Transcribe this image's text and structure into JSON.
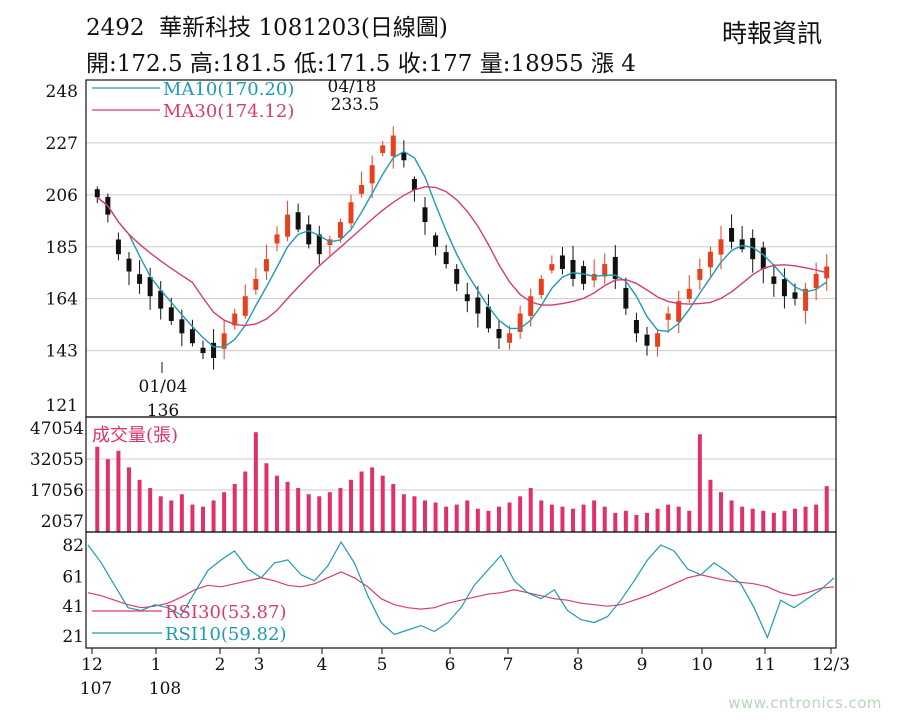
{
  "header": {
    "code": "2492",
    "name": "華新科技",
    "date": "1081203",
    "chart_type": "(日線圖)",
    "open_label": "開:",
    "open": "172.5",
    "high_label": "高:",
    "high": "181.5",
    "low_label": "低:",
    "low": "171.5",
    "close_label": "收:",
    "close": "177",
    "volume_label": "量:",
    "volume": "18955",
    "change_label": "漲",
    "change": "4"
  },
  "source": "時報資訊",
  "watermark": "www.cntronics.com",
  "colors": {
    "ma10": "#1e9bb4",
    "ma30": "#d83c6e",
    "up": "#e8401c",
    "down": "#111111",
    "volume": "#e0306e",
    "grid": "#cccccc"
  },
  "chart_data": [
    {
      "type": "candlestick",
      "title": "2492 華新科技 1081203(日線圖)",
      "ylim": [
        121,
        248
      ],
      "y_ticks": [
        "248",
        "227",
        "206",
        "185",
        "164",
        "143",
        "121"
      ],
      "legend": [
        {
          "name": "MA10",
          "value": "(170.20)",
          "color": "#1e9bb4"
        },
        {
          "name": "MA30",
          "value": "(174.12)",
          "color": "#d83c6e"
        }
      ],
      "annotations": [
        {
          "date": "04/18",
          "value": "233.5",
          "kind": "high"
        },
        {
          "date": "01/04",
          "value": "136",
          "kind": "low"
        }
      ],
      "close_series_approx": [
        205,
        198,
        182,
        175,
        170,
        165,
        160,
        155,
        150,
        146,
        142,
        140,
        150,
        158,
        165,
        172,
        180,
        190,
        198,
        192,
        186,
        182,
        188,
        195,
        203,
        210,
        218,
        226,
        230,
        220,
        208,
        195,
        185,
        178,
        170,
        163,
        158,
        152,
        148,
        150,
        158,
        165,
        172,
        178,
        176,
        172,
        170,
        174,
        178,
        172,
        160,
        150,
        145,
        150,
        158,
        163,
        168,
        176,
        183,
        188,
        187,
        184,
        180,
        176,
        170,
        165,
        164,
        168,
        174,
        177
      ]
    },
    {
      "type": "bar",
      "title": "成交量(張)",
      "ylim": [
        2057,
        47054
      ],
      "y_ticks": [
        "47054",
        "32055",
        "17056",
        "2057"
      ],
      "values_approx": [
        38000,
        32000,
        36000,
        28000,
        22000,
        18000,
        14000,
        12000,
        15000,
        10000,
        9000,
        12000,
        16000,
        20000,
        26000,
        45000,
        30000,
        24000,
        21000,
        18000,
        15000,
        14000,
        16000,
        18000,
        22000,
        26000,
        28000,
        24000,
        20000,
        15000,
        14000,
        12000,
        11000,
        9000,
        10000,
        12000,
        8000,
        7000,
        9000,
        11000,
        14000,
        18000,
        12000,
        10000,
        9000,
        8000,
        10000,
        12000,
        9000,
        6000,
        7000,
        5000,
        6000,
        8000,
        10000,
        9000,
        7000,
        44000,
        22000,
        16000,
        12000,
        9000,
        8000,
        7000,
        6000,
        7000,
        8000,
        9000,
        10000,
        18955
      ]
    },
    {
      "type": "line",
      "ylim": [
        10,
        88
      ],
      "y_ticks": [
        "82",
        "61",
        "41",
        "21"
      ],
      "x_tick_labels": [
        "12",
        "1",
        "2",
        "3",
        "4",
        "5",
        "6",
        "7",
        "8",
        "9",
        "10",
        "11",
        "12/3"
      ],
      "x_year_labels": [
        "107",
        "108"
      ],
      "series": [
        {
          "name": "RSI30",
          "value": "(53.87)",
          "color": "#d83c6e",
          "values": [
            50,
            48,
            45,
            42,
            40,
            41,
            43,
            47,
            52,
            55,
            54,
            56,
            58,
            60,
            58,
            55,
            54,
            56,
            60,
            64,
            60,
            54,
            46,
            42,
            40,
            39,
            40,
            43,
            45,
            47,
            49,
            50,
            52,
            50,
            48,
            46,
            45,
            43,
            42,
            41,
            42,
            45,
            48,
            52,
            56,
            60,
            62,
            60,
            58,
            57,
            56,
            54,
            50,
            48,
            50,
            53,
            54
          ]
        },
        {
          "name": "RSI10",
          "value": "(59.82)",
          "color": "#1e9bb4",
          "values": [
            82,
            70,
            55,
            40,
            38,
            42,
            40,
            35,
            50,
            65,
            72,
            78,
            66,
            60,
            70,
            72,
            62,
            58,
            68,
            84,
            70,
            48,
            30,
            22,
            25,
            28,
            24,
            30,
            40,
            55,
            65,
            75,
            58,
            50,
            46,
            52,
            38,
            32,
            30,
            34,
            45,
            58,
            72,
            82,
            78,
            66,
            62,
            70,
            64,
            56,
            40,
            20,
            45,
            40,
            46,
            52,
            60
          ]
        }
      ]
    }
  ]
}
